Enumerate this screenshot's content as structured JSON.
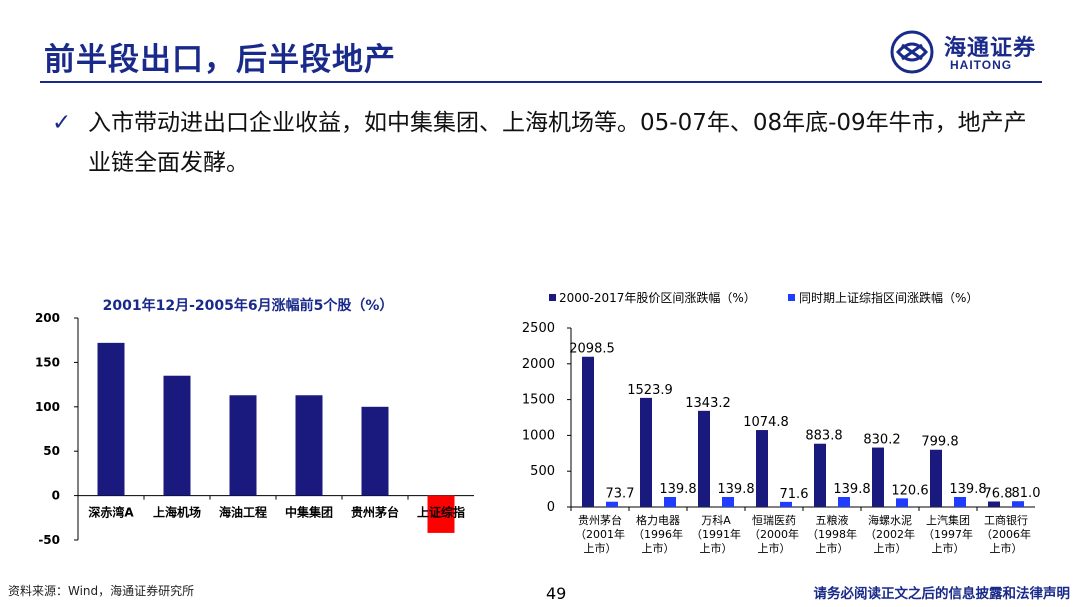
{
  "slide": {
    "title": "前半段出口，后半段地产",
    "bullet": "入市带动进出口企业收益，如中集集团、上海机场等。05-07年、08年底-09年牛市，地产产业链全面发酵。",
    "logo_cn": "海通证券",
    "logo_en": "HAITONG",
    "source": "资料来源：Wind，海通证券研究所",
    "page_number": "49",
    "disclaimer": "请务必阅读正文之后的信息披露和法律声明"
  },
  "colors": {
    "navy": "#1a2a8a",
    "bar_dark": "#1a1a7e",
    "bar_blue": "#1f3cff",
    "bar_red": "#ff0000"
  },
  "chart_data": [
    {
      "type": "bar",
      "title": "2001年12月-2005年6月涨幅前5个股（%）",
      "categories": [
        "深赤湾A",
        "上海机场",
        "海油工程",
        "中集集团",
        "贵州茅台",
        "上证综指"
      ],
      "values": [
        172,
        135,
        113,
        113,
        100,
        -42
      ],
      "ylim": [
        -50,
        200
      ],
      "yticks": [
        "200",
        "150",
        "100",
        "50",
        "0",
        "-50"
      ],
      "grid": false,
      "legend": "none"
    },
    {
      "type": "bar",
      "legend_position": "top",
      "categories": [
        [
          "贵州茅台",
          "（2001年",
          "上市）"
        ],
        [
          "格力电器",
          "（1996年",
          "上市）"
        ],
        [
          "万科A",
          "（1991年",
          "上市）"
        ],
        [
          "恒瑞医药",
          "（2000年",
          "上市）"
        ],
        [
          "五粮液",
          "（1998年",
          "上市）"
        ],
        [
          "海螺水泥",
          "（2002年",
          "上市）"
        ],
        [
          "上汽集团",
          "（1997年",
          "上市）"
        ],
        [
          "工商银行",
          "（2006年",
          "上市）"
        ]
      ],
      "series": [
        {
          "name": "2000-2017年股价区间涨跌幅（%）",
          "values": [
            2098.5,
            1523.9,
            1343.2,
            1074.8,
            883.8,
            830.2,
            799.8,
            76.8
          ],
          "labels": [
            "2098.5",
            "1523.9",
            "1343.2",
            "1074.8",
            "883.8",
            "830.2",
            "799.8",
            "76.8"
          ]
        },
        {
          "name": "同时期上证综指区间涨跌幅（%）",
          "values": [
            73.7,
            139.8,
            139.8,
            71.6,
            139.8,
            120.6,
            139.8,
            81.0
          ],
          "labels": [
            "73.7",
            "139.8",
            "139.8",
            "71.6",
            "139.8",
            "120.6",
            "139.8",
            "81.0"
          ]
        }
      ],
      "ylim": [
        0,
        2500
      ],
      "yticks": [
        "2500",
        "2000",
        "1500",
        "1000",
        "500",
        "0"
      ],
      "grid": false
    }
  ]
}
